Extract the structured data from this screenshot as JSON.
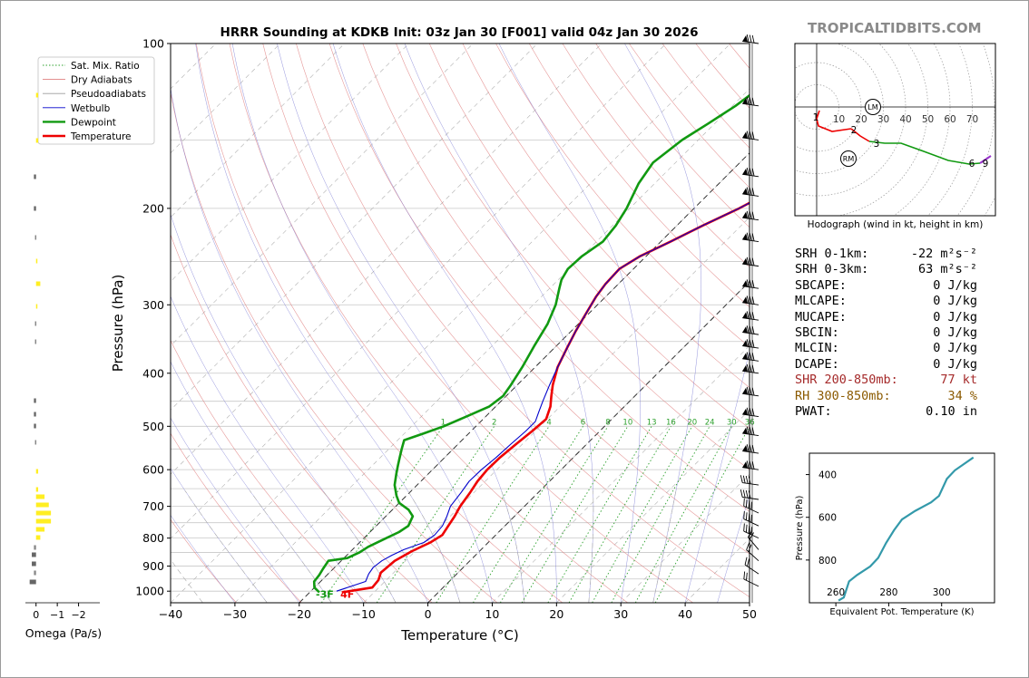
{
  "brand": "TROPICALTIDBITS.COM",
  "title": "HRRR Sounding at KDKB Init: 03z Jan 30 [F001] valid 04z Jan 30 2026",
  "chart_data": [
    {
      "type": "line",
      "kind": "skew-t",
      "title": "HRRR Sounding at KDKB Init: 03z Jan 30 [F001] valid 04z Jan 30 2026",
      "xlabel": "Temperature (°C)",
      "ylabel": "Pressure (hPa)",
      "xlim": [
        -40,
        50
      ],
      "ylim": [
        1050,
        100
      ],
      "y_scale": "log",
      "x_ticks": [
        -40,
        -30,
        -20,
        -10,
        0,
        10,
        20,
        30,
        40,
        50
      ],
      "x_tick_labels": [
        "−40",
        "−30",
        "−20",
        "−10",
        "0",
        "10",
        "20",
        "30",
        "40",
        "50"
      ],
      "y_ticks": [
        1000,
        900,
        800,
        700,
        600,
        500,
        400,
        300,
        200,
        100
      ],
      "legend": {
        "placement": "top-left",
        "entries": [
          {
            "label": "Sat. Mix. Ratio",
            "color": "#2ca02c",
            "style": "dotted"
          },
          {
            "label": "Dry Adiabats",
            "color": "#e08080",
            "style": "solid"
          },
          {
            "label": "Pseudoadiabats",
            "color": "#9a9a9a",
            "style": "solid"
          },
          {
            "label": "Wetbulb",
            "color": "#0000cc",
            "style": "solid"
          },
          {
            "label": "Dewpoint",
            "color": "#119911",
            "style": "solid"
          },
          {
            "label": "Temperature",
            "color": "#ee0000",
            "style": "solid"
          }
        ]
      },
      "mixing_ratio_labels": [
        "1",
        "2",
        "4",
        "6",
        "8",
        "10",
        "13",
        "16",
        "20",
        "24",
        "30",
        "36"
      ],
      "surface_temp_label": "4F",
      "surface_dewpoint_label": "-3F",
      "series": [
        {
          "name": "Temperature",
          "color": "#ee0000",
          "points": [
            [
              -15,
              1005
            ],
            [
              -11,
              985
            ],
            [
              -11.2,
              955
            ],
            [
              -12,
              925
            ],
            [
              -11.7,
              880
            ],
            [
              -10.5,
              845
            ],
            [
              -9,
              815
            ],
            [
              -8.3,
              790
            ],
            [
              -8.8,
              760
            ],
            [
              -9.3,
              730
            ],
            [
              -10,
              700
            ],
            [
              -10.6,
              660
            ],
            [
              -11.2,
              630
            ],
            [
              -11.5,
              600
            ],
            [
              -11.4,
              570
            ],
            [
              -11,
              540
            ],
            [
              -10.5,
              510
            ],
            [
              -10.2,
              485
            ],
            [
              -11.5,
              460
            ],
            [
              -13,
              440
            ],
            [
              -14.5,
              420
            ],
            [
              -16.5,
              390
            ],
            [
              -18,
              360
            ],
            [
              -19.3,
              335
            ],
            [
              -20.5,
              310
            ],
            [
              -21.5,
              290
            ],
            [
              -22,
              275
            ],
            [
              -22.2,
              258
            ],
            [
              -21,
              245
            ],
            [
              -18.5,
              230
            ],
            [
              -16,
              215
            ],
            [
              -13,
              200
            ],
            [
              -9.5,
              180
            ],
            [
              -6,
              160
            ],
            [
              -2,
              145
            ],
            [
              -0.5,
              120
            ],
            [
              0.3,
              100
            ]
          ]
        },
        {
          "name": "Wetbulb",
          "color": "#0000cc",
          "points": [
            [
              -16,
              1000
            ],
            [
              -13,
              960
            ],
            [
              -13.7,
              930
            ],
            [
              -14,
              905
            ],
            [
              -13.7,
              880
            ],
            [
              -13,
              860
            ],
            [
              -12,
              840
            ],
            [
              -10,
              815
            ],
            [
              -9.5,
              790
            ],
            [
              -9.7,
              760
            ],
            [
              -10.5,
              730
            ],
            [
              -11.5,
              700
            ],
            [
              -12,
              660
            ],
            [
              -12.5,
              630
            ],
            [
              -12.4,
              600
            ],
            [
              -12,
              570
            ],
            [
              -11.8,
              540
            ],
            [
              -11.5,
              510
            ],
            [
              -11.5,
              490
            ],
            [
              -12.5,
              470
            ],
            [
              -13.5,
              450
            ],
            [
              -15,
              420
            ],
            [
              -16.5,
              390
            ],
            [
              -18,
              360
            ],
            [
              -19.3,
              335
            ],
            [
              -20.5,
              310
            ],
            [
              -21.5,
              290
            ],
            [
              -22,
              275
            ],
            [
              -22.2,
              258
            ],
            [
              -21,
              245
            ],
            [
              -18.5,
              230
            ],
            [
              -16,
              215
            ],
            [
              -13,
              200
            ],
            [
              -9.5,
              180
            ],
            [
              -6.5,
              160
            ],
            [
              -2.5,
              145
            ],
            [
              -1,
              120
            ],
            [
              0,
              100
            ]
          ]
        },
        {
          "name": "Dewpoint",
          "color": "#119911",
          "points": [
            [
              -18.5,
              1005
            ],
            [
              -20,
              985
            ],
            [
              -21,
              960
            ],
            [
              -21.2,
              935
            ],
            [
              -21.6,
              910
            ],
            [
              -22,
              880
            ],
            [
              -19.5,
              870
            ],
            [
              -18.5,
              850
            ],
            [
              -18,
              830
            ],
            [
              -16.5,
              800
            ],
            [
              -15.5,
              780
            ],
            [
              -15,
              760
            ],
            [
              -15.8,
              730
            ],
            [
              -17.5,
              710
            ],
            [
              -20,
              690
            ],
            [
              -21.5,
              670
            ],
            [
              -23.5,
              640
            ],
            [
              -25,
              610
            ],
            [
              -26,
              590
            ],
            [
              -27,
              570
            ],
            [
              -28,
              550
            ],
            [
              -29,
              530
            ],
            [
              -27,
              515
            ],
            [
              -25,
              500
            ],
            [
              -23,
              480
            ],
            [
              -21,
              460
            ],
            [
              -20.5,
              440
            ],
            [
              -21,
              420
            ],
            [
              -22,
              390
            ],
            [
              -23.5,
              355
            ],
            [
              -24.8,
              325
            ],
            [
              -26.5,
              300
            ],
            [
              -28.5,
              280
            ],
            [
              -29.5,
              270
            ],
            [
              -30.2,
              258
            ],
            [
              -30,
              245
            ],
            [
              -29,
              230
            ],
            [
              -29.5,
              215
            ],
            [
              -30.5,
              200
            ],
            [
              -32.5,
              180
            ],
            [
              -33.5,
              165
            ],
            [
              -32.5,
              150
            ],
            [
              -31,
              140
            ],
            [
              -29.5,
              130
            ],
            [
              -28,
              115
            ],
            [
              -27,
              100
            ]
          ]
        }
      ]
    },
    {
      "type": "line",
      "kind": "hodograph",
      "xlabel": "Hodograph (wind in kt, height in km)",
      "ring_labels": [
        "10",
        "20",
        "30",
        "40",
        "50",
        "60",
        "70"
      ],
      "height_labels": [
        "1",
        "2",
        "3",
        "6",
        "9"
      ],
      "storm_motion_labels": [
        "LM",
        "RM"
      ]
    },
    {
      "type": "line",
      "kind": "omega-profile",
      "xlabel": "Omega (Pa/s)",
      "xlim": [
        0.5,
        -3
      ],
      "x_tick_labels": [
        "0",
        "−1",
        "−2"
      ]
    },
    {
      "type": "line",
      "kind": "theta-e-profile",
      "xlabel": "Equivalent Pot. Temperature (K)",
      "ylabel": "Pressure (hPa)",
      "xlim": [
        250,
        320
      ],
      "ylim": [
        1000,
        300
      ],
      "x_ticks": [
        260,
        280,
        300
      ],
      "y_ticks": [
        400,
        600,
        800
      ],
      "series": [
        {
          "name": "Theta-E",
          "color": "#3399aa",
          "points": [
            [
              261,
              990
            ],
            [
              263,
              975
            ],
            [
              265,
              900
            ],
            [
              268,
              870
            ],
            [
              273,
              830
            ],
            [
              276,
              790
            ],
            [
              279,
              720
            ],
            [
              282,
              660
            ],
            [
              285,
              610
            ],
            [
              290,
              570
            ],
            [
              296,
              530
            ],
            [
              299,
              500
            ],
            [
              302,
              420
            ],
            [
              305,
              380
            ],
            [
              312,
              320
            ]
          ]
        }
      ]
    }
  ],
  "stats": {
    "rows": [
      {
        "label": "SRH 0-1km:",
        "value": "-22 m²s⁻²",
        "style": "normal"
      },
      {
        "label": "SRH 0-3km:",
        "value": "63 m²s⁻²",
        "style": "normal"
      },
      {
        "label": "SBCAPE:",
        "value": "0 J/kg",
        "style": "normal"
      },
      {
        "label": "MLCAPE:",
        "value": "0 J/kg",
        "style": "normal"
      },
      {
        "label": "MUCAPE:",
        "value": "0 J/kg",
        "style": "normal"
      },
      {
        "label": "SBCIN:",
        "value": "0 J/kg",
        "style": "normal"
      },
      {
        "label": "MLCIN:",
        "value": "0 J/kg",
        "style": "normal"
      },
      {
        "label": "DCAPE:",
        "value": "0 J/kg",
        "style": "normal"
      },
      {
        "label": "SHR 200-850mb:",
        "value": "77 kt",
        "style": "shr"
      },
      {
        "label": "RH 300-850mb:",
        "value": "34 %",
        "style": "rh"
      },
      {
        "label": "PWAT:",
        "value": "0.10 in",
        "style": "normal"
      }
    ]
  }
}
